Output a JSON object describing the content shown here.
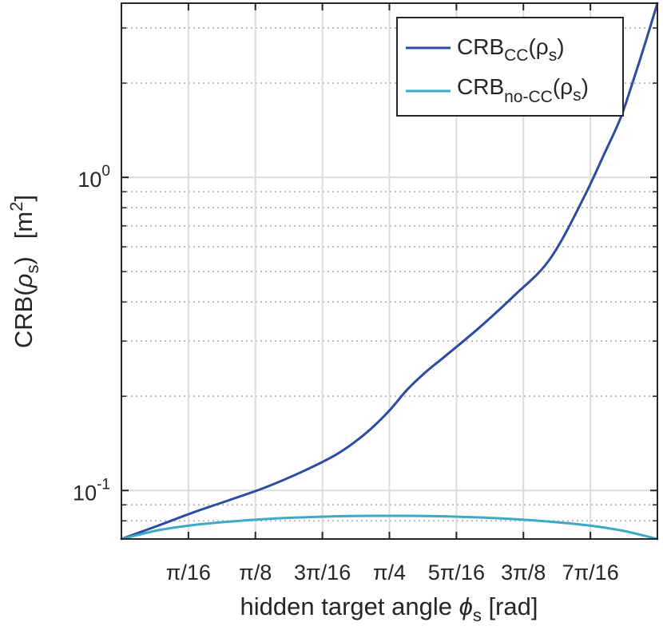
{
  "chart_data": {
    "type": "line",
    "scale": {
      "x": "linear",
      "y": "log"
    },
    "xlabel": {
      "text": "hidden target angle ",
      "symbol": "ϕ",
      "sub": "s",
      "unit": " [rad]"
    },
    "ylabel": {
      "text": "CRB(",
      "symbol": "ρ",
      "sub": "s",
      "close": ")",
      "unit": "[m",
      "unit_sup": "2",
      "unit_close": "]"
    },
    "xlim": [
      0,
      1.5708
    ],
    "ylim": [
      0.07,
      3.6
    ],
    "x_ticks": [
      {
        "value": 0.19635,
        "label": "π/16"
      },
      {
        "value": 0.3927,
        "label": "π/8"
      },
      {
        "value": 0.58905,
        "label": "3π/16"
      },
      {
        "value": 0.7854,
        "label": "π/4"
      },
      {
        "value": 0.98175,
        "label": "5π/16"
      },
      {
        "value": 1.1781,
        "label": "3π/8"
      },
      {
        "value": 1.37445,
        "label": "7π/16"
      }
    ],
    "y_ticks": [
      {
        "value": 0.1,
        "base": "10",
        "exp": "-1"
      },
      {
        "value": 1,
        "base": "10",
        "exp": "0"
      }
    ],
    "grid": true,
    "minor_grid": true,
    "legend": {
      "placement": "top-right"
    },
    "series": [
      {
        "name": "CRB",
        "name_sub": "CC",
        "name_arg": "(ρ",
        "name_arg_sub": "s",
        "name_close": ")",
        "color": "#2b4ca0",
        "x": [
          0,
          0.1047,
          0.2094,
          0.3142,
          0.4189,
          0.5236,
          0.6283,
          0.6807,
          0.733,
          0.7854,
          0.8378,
          0.8901,
          0.9425,
          1.0472,
          1.1519,
          1.2566,
          1.3614,
          1.4137,
          1.4661,
          1.4923,
          1.5184,
          1.5446,
          1.5708
        ],
        "y": [
          0.07,
          0.077,
          0.085,
          0.093,
          0.102,
          0.114,
          0.13,
          0.142,
          0.158,
          0.18,
          0.21,
          0.238,
          0.265,
          0.33,
          0.42,
          0.55,
          0.89,
          1.18,
          1.58,
          1.92,
          2.35,
          2.9,
          3.6
        ]
      },
      {
        "name": "CRB",
        "name_sub": "no-CC",
        "name_arg": "(ρ",
        "name_arg_sub": "s",
        "name_close": ")",
        "color": "#3ca9c6",
        "x": [
          0,
          0.1047,
          0.2094,
          0.3142,
          0.4189,
          0.5236,
          0.6283,
          0.733,
          0.7854,
          0.8378,
          0.9425,
          1.0472,
          1.1519,
          1.2566,
          1.3614,
          1.4661,
          1.5708
        ],
        "y": [
          0.07,
          0.0745,
          0.0775,
          0.0795,
          0.081,
          0.082,
          0.0827,
          0.083,
          0.083,
          0.083,
          0.0827,
          0.082,
          0.081,
          0.0795,
          0.0775,
          0.0745,
          0.07
        ]
      }
    ]
  }
}
